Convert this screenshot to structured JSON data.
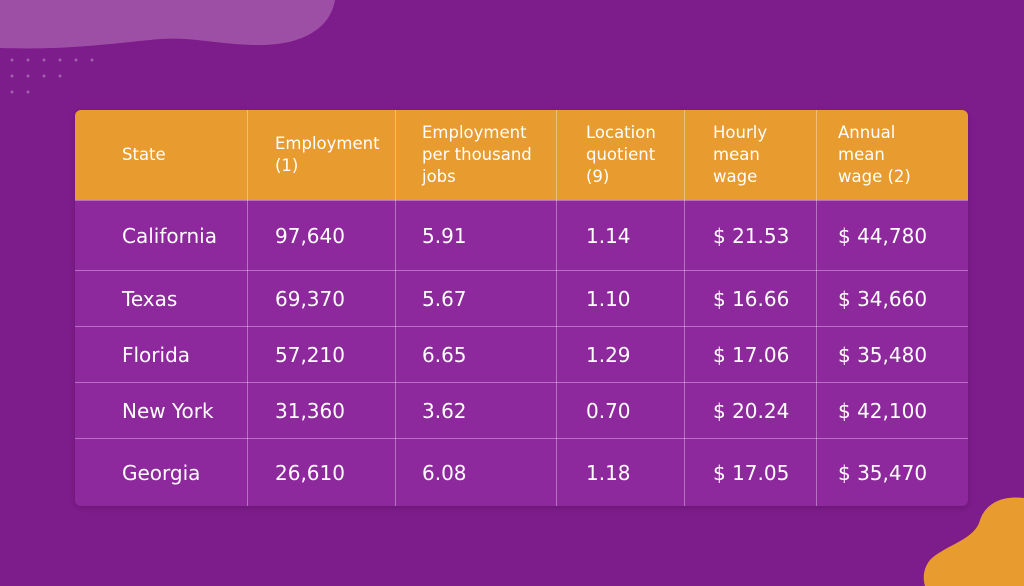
{
  "table": {
    "headers": [
      "State",
      "Employment (1)",
      "Employment per thousand jobs",
      "Location quotient (9)",
      "Hourly mean wage",
      "Annual mean wage (2)"
    ],
    "rows": [
      [
        "California",
        "97,640",
        "5.91",
        "1.14",
        "$ 21.53",
        "$ 44,780"
      ],
      [
        "Texas",
        "69,370",
        "5.67",
        "1.10",
        "$ 16.66",
        "$ 34,660"
      ],
      [
        "Florida",
        "57,210",
        "6.65",
        "1.29",
        "$ 17.06",
        "$ 35,480"
      ],
      [
        "New York",
        "31,360",
        "3.62",
        "0.70",
        "$ 20.24",
        "$ 42,100"
      ],
      [
        "Georgia",
        "26,610",
        "6.08",
        "1.18",
        "$ 17.05",
        "$ 35,470"
      ]
    ]
  }
}
